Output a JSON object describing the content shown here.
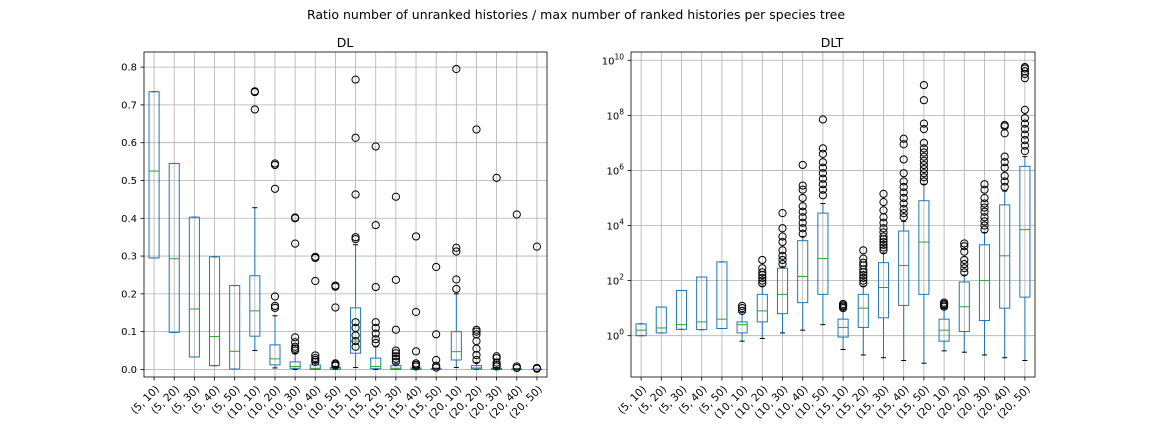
{
  "suptitle": "Ratio number of unranked histories / max number of ranked histories per species tree",
  "colors": {
    "box": "#1f77b4",
    "median": "#2ca02c",
    "whisker": "#000000",
    "grid": "#b0b0b0",
    "flier": "#000000"
  },
  "chart_data": [
    {
      "type": "box",
      "title": "DL",
      "xlabel": "",
      "ylabel": "",
      "yscale": "linear",
      "ylim": [
        -0.02,
        0.84
      ],
      "yticks": [
        0.0,
        0.1,
        0.2,
        0.3,
        0.4,
        0.5,
        0.6,
        0.7,
        0.8
      ],
      "ytick_labels": [
        "0.0",
        "0.1",
        "0.2",
        "0.3",
        "0.4",
        "0.5",
        "0.6",
        "0.7",
        "0.8"
      ],
      "grid": true,
      "categories": [
        "(5, 10)",
        "(5, 20)",
        "(5, 30)",
        "(5, 40)",
        "(5, 50)",
        "(10, 10)",
        "(10, 20)",
        "(10, 30)",
        "(10, 40)",
        "(10, 50)",
        "(15, 10)",
        "(15, 20)",
        "(15, 30)",
        "(15, 40)",
        "(15, 50)",
        "(20, 10)",
        "(20, 20)",
        "(20, 30)",
        "(20, 40)",
        "(20, 50)"
      ],
      "boxes": [
        {
          "whislo": 0.295,
          "q1": 0.295,
          "med": 0.525,
          "q3": 0.735,
          "whishi": 0.735,
          "fliers": []
        },
        {
          "whislo": 0.098,
          "q1": 0.098,
          "med": 0.293,
          "q3": 0.545,
          "whishi": 0.545,
          "fliers": []
        },
        {
          "whislo": 0.033,
          "q1": 0.033,
          "med": 0.16,
          "q3": 0.403,
          "whishi": 0.403,
          "fliers": []
        },
        {
          "whislo": 0.01,
          "q1": 0.01,
          "med": 0.087,
          "q3": 0.298,
          "whishi": 0.298,
          "fliers": []
        },
        {
          "whislo": 0.001,
          "q1": 0.001,
          "med": 0.048,
          "q3": 0.222,
          "whishi": 0.222,
          "fliers": []
        },
        {
          "whislo": 0.05,
          "q1": 0.088,
          "med": 0.155,
          "q3": 0.248,
          "whishi": 0.428,
          "fliers": [
            0.688,
            0.734,
            0.736
          ]
        },
        {
          "whislo": 0.004,
          "q1": 0.012,
          "med": 0.028,
          "q3": 0.065,
          "whishi": 0.142,
          "fliers": [
            0.163,
            0.168,
            0.193,
            0.478,
            0.541,
            0.545
          ]
        },
        {
          "whislo": 0.0,
          "q1": 0.003,
          "med": 0.008,
          "q3": 0.02,
          "whishi": 0.043,
          "fliers": [
            0.05,
            0.055,
            0.06,
            0.072,
            0.085,
            0.333,
            0.4,
            0.402
          ]
        },
        {
          "whislo": 0.0,
          "q1": 0.0,
          "med": 0.003,
          "q3": 0.012,
          "whishi": 0.018,
          "fliers": [
            0.02,
            0.025,
            0.03,
            0.037,
            0.234,
            0.295,
            0.298
          ]
        },
        {
          "whislo": 0.0,
          "q1": 0.0,
          "med": 0.001,
          "q3": 0.005,
          "whishi": 0.008,
          "fliers": [
            0.01,
            0.013,
            0.016,
            0.164,
            0.219,
            0.222
          ]
        },
        {
          "whislo": 0.005,
          "q1": 0.043,
          "med": 0.075,
          "q3": 0.163,
          "whishi": 0.33,
          "fliers": [
            0.06,
            0.075,
            0.09,
            0.11,
            0.125,
            0.345,
            0.35,
            0.463,
            0.613,
            0.767
          ]
        },
        {
          "whislo": 0.0,
          "q1": 0.002,
          "med": 0.008,
          "q3": 0.03,
          "whishi": 0.06,
          "fliers": [
            0.07,
            0.08,
            0.095,
            0.11,
            0.125,
            0.218,
            0.382,
            0.59
          ]
        },
        {
          "whislo": 0.0,
          "q1": 0.0,
          "med": 0.003,
          "q3": 0.01,
          "whishi": 0.015,
          "fliers": [
            0.02,
            0.028,
            0.035,
            0.043,
            0.05,
            0.105,
            0.237,
            0.457
          ]
        },
        {
          "whislo": 0.0,
          "q1": 0.0,
          "med": 0.001,
          "q3": 0.004,
          "whishi": 0.006,
          "fliers": [
            0.008,
            0.012,
            0.016,
            0.048,
            0.152,
            0.352
          ]
        },
        {
          "whislo": 0.0,
          "q1": 0.0,
          "med": 0.0,
          "q3": 0.002,
          "whishi": 0.003,
          "fliers": [
            0.005,
            0.01,
            0.025,
            0.093,
            0.271
          ]
        },
        {
          "whislo": 0.005,
          "q1": 0.025,
          "med": 0.047,
          "q3": 0.1,
          "whishi": 0.2,
          "fliers": [
            0.213,
            0.238,
            0.312,
            0.322,
            0.795
          ]
        },
        {
          "whislo": 0.0,
          "q1": 0.001,
          "med": 0.004,
          "q3": 0.01,
          "whishi": 0.018,
          "fliers": [
            0.025,
            0.038,
            0.055,
            0.075,
            0.093,
            0.1,
            0.105,
            0.635
          ]
        },
        {
          "whislo": 0.0,
          "q1": 0.0,
          "med": 0.001,
          "q3": 0.003,
          "whishi": 0.005,
          "fliers": [
            0.008,
            0.012,
            0.018,
            0.03,
            0.035,
            0.507
          ]
        },
        {
          "whislo": 0.0,
          "q1": 0.0,
          "med": 0.0,
          "q3": 0.001,
          "whishi": 0.002,
          "fliers": [
            0.004,
            0.008,
            0.41
          ]
        },
        {
          "whislo": 0.0,
          "q1": 0.0,
          "med": 0.0,
          "q3": 0.001,
          "whishi": 0.001,
          "fliers": [
            0.002,
            0.004,
            0.325
          ]
        }
      ]
    },
    {
      "type": "box",
      "title": "DLT",
      "xlabel": "",
      "ylabel": "",
      "yscale": "log",
      "ylim_log10": [
        -1.5,
        10.3
      ],
      "yticks_exp": [
        0,
        2,
        4,
        6,
        8,
        10
      ],
      "ytick_base": "10",
      "grid": true,
      "categories": [
        "(5, 10)",
        "(5, 20)",
        "(5, 30)",
        "(5, 40)",
        "(5, 50)",
        "(10, 10)",
        "(10, 20)",
        "(10, 30)",
        "(10, 40)",
        "(10, 50)",
        "(15, 10)",
        "(15, 20)",
        "(15, 30)",
        "(15, 40)",
        "(15, 50)",
        "(20, 10)",
        "(20, 20)",
        "(20, 30)",
        "(20, 40)",
        "(20, 50)"
      ],
      "boxes_log10": [
        {
          "whislo": 0.0,
          "q1": 0.0,
          "med": 0.2,
          "q3": 0.43,
          "whishi": 0.43,
          "fliers": []
        },
        {
          "whislo": 0.1,
          "q1": 0.1,
          "med": 0.28,
          "q3": 1.04,
          "whishi": 1.04,
          "fliers": []
        },
        {
          "whislo": 0.23,
          "q1": 0.23,
          "med": 0.4,
          "q3": 1.64,
          "whishi": 1.64,
          "fliers": []
        },
        {
          "whislo": 0.22,
          "q1": 0.22,
          "med": 0.5,
          "q3": 2.13,
          "whishi": 2.13,
          "fliers": []
        },
        {
          "whislo": 0.26,
          "q1": 0.26,
          "med": 0.6,
          "q3": 2.68,
          "whishi": 2.68,
          "fliers": []
        },
        {
          "whislo": -0.2,
          "q1": 0.1,
          "med": 0.4,
          "q3": 0.5,
          "whishi": 0.85,
          "fliers": [
            0.9,
            1.0,
            1.08
          ]
        },
        {
          "whislo": -0.1,
          "q1": 0.5,
          "med": 0.9,
          "q3": 1.5,
          "whishi": 1.8,
          "fliers": [
            1.9,
            2.0,
            2.1,
            2.2,
            2.3,
            2.45,
            2.75
          ]
        },
        {
          "whislo": 0.1,
          "q1": 0.8,
          "med": 1.5,
          "q3": 2.45,
          "whishi": 2.5,
          "fliers": [
            2.6,
            2.75,
            2.9,
            3.1,
            3.4,
            3.6,
            3.9,
            4.45
          ]
        },
        {
          "whislo": 0.2,
          "q1": 1.2,
          "med": 2.15,
          "q3": 3.45,
          "whishi": 3.6,
          "fliers": [
            3.7,
            3.9,
            4.1,
            4.3,
            4.5,
            4.7,
            5.0,
            5.3,
            5.45,
            6.2
          ]
        },
        {
          "whislo": 0.4,
          "q1": 1.5,
          "med": 2.8,
          "q3": 4.45,
          "whishi": 4.8,
          "fliers": [
            5.1,
            5.3,
            5.5,
            5.7,
            5.9,
            6.1,
            6.3,
            6.6,
            6.8,
            7.85
          ]
        },
        {
          "whislo": -0.5,
          "q1": -0.05,
          "med": 0.3,
          "q3": 0.6,
          "whishi": 0.95,
          "fliers": [
            1.0,
            1.05,
            1.1,
            1.15
          ]
        },
        {
          "whislo": -0.7,
          "q1": 0.3,
          "med": 1.0,
          "q3": 1.5,
          "whishi": 1.8,
          "fliers": [
            1.9,
            2.0,
            2.1,
            2.2,
            2.3,
            2.4,
            2.55,
            2.65,
            2.8,
            3.1
          ]
        },
        {
          "whislo": -0.8,
          "q1": 0.65,
          "med": 1.75,
          "q3": 2.65,
          "whishi": 3.0,
          "fliers": [
            3.1,
            3.2,
            3.3,
            3.4,
            3.5,
            3.6,
            3.75,
            3.9,
            4.1,
            4.3,
            4.55,
            4.85,
            5.15
          ]
        },
        {
          "whislo": -0.9,
          "q1": 1.1,
          "med": 2.55,
          "q3": 3.8,
          "whishi": 4.15,
          "fliers": [
            4.3,
            4.45,
            4.6,
            4.8,
            5.0,
            5.2,
            5.4,
            5.6,
            5.9,
            6.4,
            6.95,
            7.15
          ]
        },
        {
          "whislo": -1.0,
          "q1": 1.5,
          "med": 3.4,
          "q3": 4.9,
          "whishi": 5.5,
          "fliers": [
            5.6,
            5.75,
            5.9,
            6.05,
            6.2,
            6.35,
            6.5,
            6.65,
            6.8,
            7.0,
            7.5,
            7.7,
            8.55,
            9.1
          ]
        },
        {
          "whislo": -0.55,
          "q1": -0.2,
          "med": 0.2,
          "q3": 0.6,
          "whishi": 1.0,
          "fliers": [
            1.05,
            1.1,
            1.15,
            1.2
          ]
        },
        {
          "whislo": -0.6,
          "q1": 0.15,
          "med": 1.05,
          "q3": 1.95,
          "whishi": 2.2,
          "fliers": [
            2.3,
            2.45,
            2.6,
            2.75,
            3.05,
            3.25,
            3.35
          ]
        },
        {
          "whislo": -0.7,
          "q1": 0.55,
          "med": 2.0,
          "q3": 3.3,
          "whishi": 3.75,
          "fliers": [
            3.85,
            4.0,
            4.15,
            4.3,
            4.5,
            4.65,
            4.8,
            5.0,
            5.3,
            5.5
          ]
        },
        {
          "whislo": -0.8,
          "q1": 1.0,
          "med": 2.9,
          "q3": 4.75,
          "whishi": 5.25,
          "fliers": [
            5.4,
            5.6,
            5.8,
            6.1,
            6.3,
            6.5,
            7.35,
            7.6,
            7.65
          ]
        },
        {
          "whislo": -0.9,
          "q1": 1.4,
          "med": 3.85,
          "q3": 6.15,
          "whishi": 6.5,
          "fliers": [
            6.7,
            6.9,
            7.1,
            7.3,
            7.5,
            7.7,
            7.9,
            8.2,
            9.35,
            9.5,
            9.6,
            9.7,
            9.75
          ]
        }
      ]
    }
  ]
}
